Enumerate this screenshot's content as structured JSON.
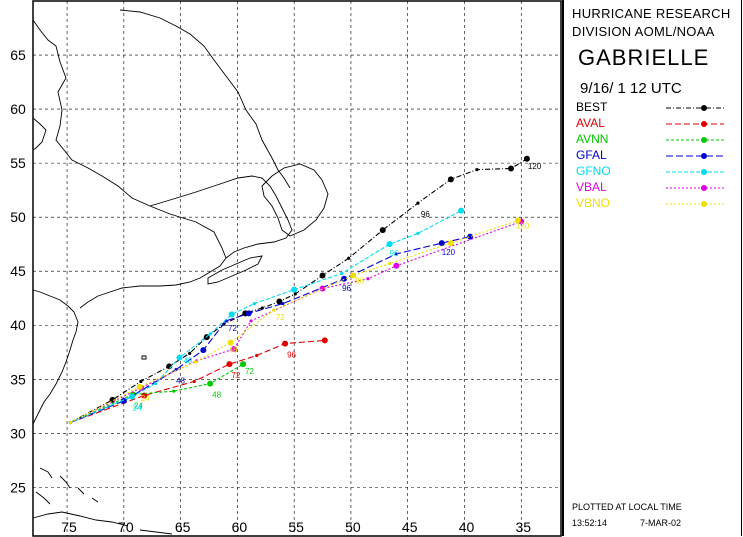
{
  "header": {
    "org_line1": "HURRICANE RESEARCH",
    "org_line2": "DIVISION AOML/NOAA",
    "storm_name": "GABRIELLE",
    "datetime": "9/16/ 1 12   UTC"
  },
  "footer": {
    "note": "PLOTTED AT LOCAL TIME",
    "time": "13:52:14",
    "date": "7-MAR-02"
  },
  "chart_data": {
    "type": "line",
    "title": "GABRIELLE",
    "x_axis": {
      "label": "",
      "min": 78,
      "max": 31.5,
      "reversed": true,
      "ticks": [
        75,
        70,
        65,
        60,
        55,
        50,
        45,
        40,
        35
      ],
      "tick_labels": [
        "75",
        "70",
        "65",
        "60",
        "55",
        "50",
        "45",
        "40",
        "35"
      ]
    },
    "y_axis": {
      "label": "",
      "min": 20.5,
      "max": 70,
      "ticks": [
        25,
        30,
        35,
        40,
        45,
        50,
        55,
        60,
        65
      ],
      "tick_labels": [
        "25",
        "30",
        "35",
        "40",
        "45",
        "50",
        "55",
        "60",
        "65"
      ]
    },
    "grid": true,
    "legend_position": "right-panel",
    "series": [
      {
        "name": "BEST",
        "color": "#000000",
        "dash": "5,2,1,2",
        "points": [
          [
            74.7,
            31.0
          ],
          [
            71.0,
            33.1
          ],
          [
            68.5,
            34.8
          ],
          [
            66.0,
            36.2
          ],
          [
            64.2,
            37.4
          ],
          [
            62.7,
            38.9
          ],
          [
            61.2,
            40.1
          ],
          [
            59.3,
            41.1
          ],
          [
            57.8,
            41.6
          ],
          [
            56.3,
            42.2
          ],
          [
            54.9,
            42.9
          ],
          [
            52.5,
            44.6
          ],
          [
            50.2,
            46.2
          ],
          [
            47.2,
            48.8
          ],
          [
            44.1,
            51.3
          ],
          [
            41.2,
            53.5
          ],
          [
            38.9,
            54.4
          ],
          [
            35.9,
            54.5
          ],
          [
            34.5,
            55.4
          ]
        ],
        "labels": [
          {
            "text": "96",
            "at": [
              44.1,
              51.3
            ],
            "dx": 3,
            "dy": 14
          },
          {
            "text": "120",
            "at": [
              34.5,
              55.4
            ],
            "dx": 1,
            "dy": 10
          }
        ]
      },
      {
        "name": "AVAL",
        "color": "#e00000",
        "dash": "6,3",
        "points": [
          [
            74.7,
            31.0
          ],
          [
            68.2,
            33.5
          ],
          [
            63.8,
            34.8
          ],
          [
            60.7,
            36.4
          ],
          [
            58.3,
            37.2
          ],
          [
            55.8,
            38.3
          ],
          [
            52.3,
            38.6
          ]
        ],
        "labels": [
          {
            "text": "72",
            "at": [
              60.7,
              36.4
            ],
            "dx": 2,
            "dy": 14
          },
          {
            "text": "96",
            "at": [
              55.8,
              38.3
            ],
            "dx": 2,
            "dy": 14
          }
        ]
      },
      {
        "name": "AVNN",
        "color": "#00c800",
        "dash": "3,2",
        "points": [
          [
            74.7,
            31.0
          ],
          [
            69.2,
            33.6
          ],
          [
            65.6,
            33.9
          ],
          [
            62.4,
            34.6
          ],
          [
            59.5,
            36.4
          ]
        ],
        "labels": [
          {
            "text": "24",
            "at": [
              69.2,
              33.6
            ],
            "dx": 1,
            "dy": 14
          },
          {
            "text": "48",
            "at": [
              62.4,
              34.6
            ],
            "dx": 2,
            "dy": 14
          },
          {
            "text": "72",
            "at": [
              59.5,
              36.4
            ],
            "dx": 2,
            "dy": 10
          }
        ]
      },
      {
        "name": "GFAL",
        "color": "#0000d2",
        "dash": "7,3",
        "points": [
          [
            74.7,
            31.0
          ],
          [
            70.0,
            33.0
          ],
          [
            65.4,
            35.9
          ],
          [
            63.0,
            37.7
          ],
          [
            61.0,
            40.4
          ],
          [
            59.0,
            41.1
          ],
          [
            56.0,
            42.0
          ],
          [
            50.6,
            44.3
          ],
          [
            46.0,
            46.6
          ],
          [
            42.0,
            47.6
          ],
          [
            39.5,
            48.2
          ]
        ],
        "labels": [
          {
            "text": "48",
            "at": [
              65.4,
              35.9
            ],
            "dx": 0,
            "dy": 14
          },
          {
            "text": "72",
            "at": [
              61.0,
              40.4
            ],
            "dx": 2,
            "dy": 10
          },
          {
            "text": "96",
            "at": [
              50.6,
              44.3
            ],
            "dx": -2,
            "dy": 12
          },
          {
            "text": "120",
            "at": [
              42.0,
              47.6
            ],
            "dx": 0,
            "dy": 12
          }
        ]
      },
      {
        "name": "GFNO",
        "color": "#00dcf0",
        "dash": "4,2",
        "points": [
          [
            74.7,
            31.0
          ],
          [
            69.3,
            33.4
          ],
          [
            67.2,
            34.6
          ],
          [
            65.1,
            37.0
          ],
          [
            62.4,
            39.2
          ],
          [
            60.5,
            41.0
          ],
          [
            58.5,
            42.0
          ],
          [
            55.0,
            43.3
          ],
          [
            50.8,
            44.8
          ],
          [
            46.6,
            47.5
          ],
          [
            44.1,
            48.5
          ],
          [
            40.3,
            50.6
          ]
        ],
        "labels": [
          {
            "text": "24",
            "at": [
              69.3,
              33.4
            ],
            "dx": 1,
            "dy": 14
          },
          {
            "text": "48",
            "at": [
              65.1,
              37.0
            ],
            "dx": 4,
            "dy": 6
          },
          {
            "text": "96",
            "at": [
              46.6,
              47.5
            ],
            "dx": 0,
            "dy": 12
          }
        ]
      },
      {
        "name": "VBAL",
        "color": "#e000e0",
        "dash": "2,2",
        "points": [
          [
            74.7,
            31.0
          ],
          [
            68.5,
            34.2
          ],
          [
            63.6,
            36.7
          ],
          [
            60.3,
            37.8
          ],
          [
            58.8,
            40.4
          ],
          [
            52.5,
            43.4
          ],
          [
            48.5,
            44.3
          ],
          [
            46.0,
            45.5
          ],
          [
            35.0,
            49.6
          ]
        ],
        "labels": []
      },
      {
        "name": "VBNO",
        "color": "#f0e000",
        "dash": "2,2",
        "points": [
          [
            74.7,
            31.0
          ],
          [
            68.6,
            34.3
          ],
          [
            63.7,
            36.6
          ],
          [
            60.6,
            38.4
          ],
          [
            56.8,
            41.4
          ],
          [
            49.8,
            44.6
          ],
          [
            46.6,
            45.7
          ],
          [
            41.2,
            47.6
          ],
          [
            35.3,
            49.7
          ]
        ],
        "labels": [
          {
            "text": "24",
            "at": [
              68.6,
              34.3
            ],
            "dx": 1,
            "dy": 14
          },
          {
            "text": "48",
            "at": [
              60.6,
              38.4
            ],
            "dx": -2,
            "dy": 10
          },
          {
            "text": "72",
            "at": [
              56.8,
              41.4
            ],
            "dx": 2,
            "dy": 10
          },
          {
            "text": "96",
            "at": [
              49.8,
              44.6
            ],
            "dx": 2,
            "dy": 8
          },
          {
            "text": "120",
            "at": [
              35.3,
              49.7
            ],
            "dx": -2,
            "dy": 8
          }
        ]
      }
    ]
  }
}
